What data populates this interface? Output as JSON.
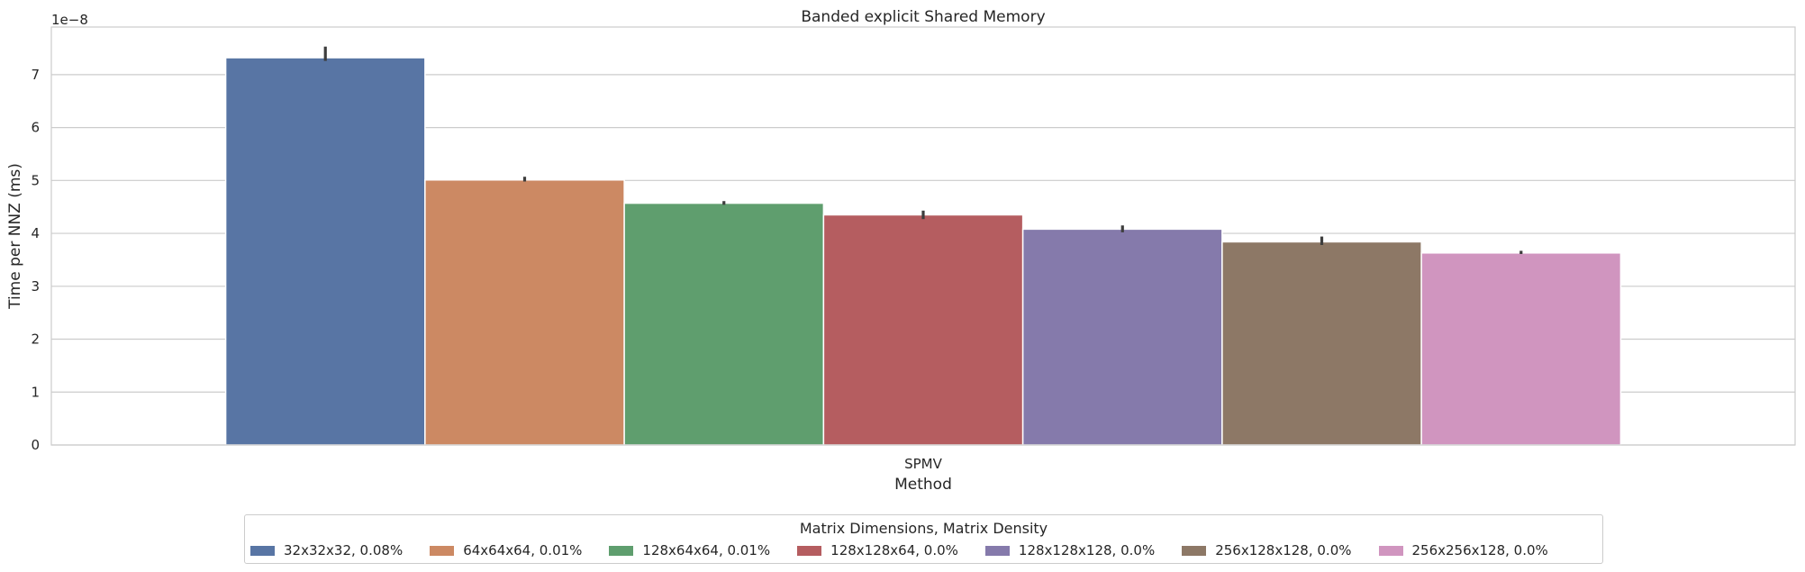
{
  "chart_data": {
    "type": "bar",
    "title": "Banded explicit Shared Memory",
    "xlabel": "Method",
    "ylabel": "Time per NNZ (ms)",
    "y_scale_label": "1e−8",
    "categories": [
      "SPMV"
    ],
    "ylim": [
      0,
      7.9
    ],
    "yticks": [
      0,
      1,
      2,
      3,
      4,
      5,
      6,
      7
    ],
    "ytick_labels": [
      "0",
      "1",
      "2",
      "3",
      "4",
      "5",
      "6",
      "7"
    ],
    "grid": true,
    "legend_title": "Matrix Dimensions, Matrix Density",
    "legend_placement": "bottom-center",
    "series": [
      {
        "name": "32x32x32, 0.08%",
        "values": [
          7.32
        ],
        "err": [
          7.26,
          7.53
        ],
        "color": "#5875a4"
      },
      {
        "name": "64x64x64, 0.01%",
        "values": [
          5.01
        ],
        "err": [
          4.98,
          5.07
        ],
        "color": "#cc8963"
      },
      {
        "name": "128x64x64, 0.01%",
        "values": [
          4.57
        ],
        "err": [
          4.54,
          4.61
        ],
        "color": "#5f9e6e"
      },
      {
        "name": "128x128x64, 0.0%",
        "values": [
          4.35
        ],
        "err": [
          4.27,
          4.43
        ],
        "color": "#b55d60"
      },
      {
        "name": "128x128x128, 0.0%",
        "values": [
          4.08
        ],
        "err": [
          4.02,
          4.15
        ],
        "color": "#857aab"
      },
      {
        "name": "256x128x128, 0.0%",
        "values": [
          3.84
        ],
        "err": [
          3.78,
          3.94
        ],
        "color": "#8d7866"
      },
      {
        "name": "256x256x128, 0.0%",
        "values": [
          3.63
        ],
        "err": [
          3.61,
          3.67
        ],
        "color": "#d095bf"
      }
    ]
  }
}
